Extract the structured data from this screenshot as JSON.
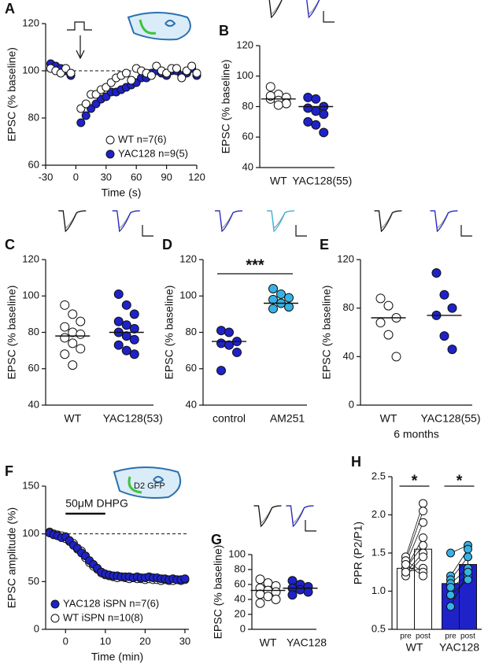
{
  "chart_data": [
    {
      "panel": "A",
      "type": "scatter",
      "ylabel": "EPSC (% baseline)",
      "xlabel": "Time (s)",
      "xlim": [
        -30,
        120
      ],
      "xticks": [
        -30,
        0,
        30,
        60,
        90,
        120
      ],
      "ylim": [
        60,
        120
      ],
      "yticks": [
        60,
        80,
        100,
        120
      ],
      "ref_line": 100,
      "legend": "lower right",
      "x": [
        -25,
        -20,
        -15,
        -10,
        -5,
        5,
        10,
        15,
        20,
        25,
        30,
        35,
        40,
        45,
        50,
        55,
        60,
        65,
        70,
        75,
        80,
        85,
        90,
        95,
        100,
        105,
        110,
        115,
        120
      ],
      "series": [
        {
          "name": "WT n=7(6)",
          "color": "#ffffff",
          "values": [
            101,
            100,
            99,
            101,
            99,
            84,
            86,
            90,
            90,
            92,
            93,
            95,
            97,
            98,
            99,
            96,
            101,
            100,
            99,
            98,
            102,
            100,
            99,
            101,
            101,
            97,
            100,
            102,
            99
          ]
        },
        {
          "name": "YAC128 n=9(5)",
          "color": "#1f22c9",
          "values": [
            103,
            102,
            101,
            100,
            98,
            78,
            81,
            84,
            86,
            88,
            89,
            91,
            91,
            92,
            93,
            94,
            95,
            97,
            97,
            99,
            100,
            99,
            98,
            100,
            100,
            98,
            99,
            101,
            98
          ]
        }
      ]
    },
    {
      "panel": "B",
      "type": "strip",
      "ylabel": "EPSC (% baseline)",
      "categories": [
        "WT",
        "YAC128(55)"
      ],
      "ylim": [
        40,
        120
      ],
      "yticks": [
        40,
        60,
        80,
        100,
        120
      ],
      "series": [
        {
          "color": "#ffffff",
          "values": [
            93,
            88,
            86,
            85,
            84,
            82,
            87,
            81
          ],
          "mean": 85
        },
        {
          "color": "#1f22c9",
          "values": [
            86,
            85,
            80,
            79,
            77,
            75,
            70,
            68,
            63
          ],
          "mean": 80
        }
      ]
    },
    {
      "panel": "C",
      "type": "strip",
      "ylabel": "EPSC (% baseline)",
      "categories": [
        "WT",
        "YAC128(53)"
      ],
      "ylim": [
        40,
        120
      ],
      "yticks": [
        40,
        60,
        80,
        100,
        120
      ],
      "series": [
        {
          "color": "#ffffff",
          "values": [
            95,
            90,
            86,
            83,
            80,
            79,
            77,
            74,
            71,
            68,
            62
          ],
          "mean": 78
        },
        {
          "color": "#1f22c9",
          "values": [
            101,
            95,
            90,
            86,
            84,
            82,
            80,
            78,
            76,
            73,
            70,
            68
          ],
          "mean": 80
        }
      ]
    },
    {
      "panel": "D",
      "type": "strip",
      "ylabel": "EPSC (% baseline)",
      "categories": [
        "control",
        "AM251"
      ],
      "ylim": [
        40,
        120
      ],
      "yticks": [
        40,
        60,
        80,
        100,
        120
      ],
      "significance": "***",
      "series": [
        {
          "color": "#1f22c9",
          "values": [
            81,
            80,
            75,
            74,
            73,
            69,
            59
          ],
          "mean": 75
        },
        {
          "color": "#36b3e6",
          "values": [
            104,
            101,
            99,
            98,
            96,
            94,
            93
          ],
          "mean": 96
        }
      ]
    },
    {
      "panel": "E",
      "type": "strip",
      "ylabel": "EPSC (% baseline)",
      "categories": [
        "WT",
        "YAC128(55)"
      ],
      "xlabel": "6 months",
      "ylim": [
        0,
        120
      ],
      "yticks": [
        0,
        40,
        80,
        120
      ],
      "series": [
        {
          "color": "#ffffff",
          "values": [
            88,
            82,
            72,
            68,
            58,
            40
          ],
          "mean": 72
        },
        {
          "color": "#1f22c9",
          "values": [
            109,
            91,
            80,
            74,
            57,
            46
          ],
          "mean": 74
        }
      ]
    },
    {
      "panel": "F",
      "type": "scatter",
      "ylabel": "EPSC amplitude (%)",
      "xlabel": "Time (min)",
      "xlim": [
        -5,
        31
      ],
      "xticks": [
        0,
        10,
        20,
        30
      ],
      "ylim": [
        0,
        150
      ],
      "yticks": [
        0,
        50,
        100,
        150
      ],
      "ref_line": 100,
      "legend": "lower left",
      "annotation": "50μM DHPG",
      "annotation_span": [
        0,
        10
      ],
      "inset_label": "D2 GFP",
      "x": [
        -4,
        -3,
        -2,
        -1,
        0,
        1,
        2,
        3,
        4,
        5,
        6,
        7,
        8,
        9,
        10,
        11,
        12,
        13,
        14,
        15,
        16,
        17,
        18,
        19,
        20,
        21,
        22,
        23,
        24,
        25,
        26,
        27,
        28,
        29,
        30
      ],
      "series": [
        {
          "name": "YAC128 iSPN n=7(6)",
          "color": "#1f22c9",
          "values": [
            101,
            99,
            98,
            96,
            97,
            93,
            88,
            85,
            80,
            77,
            72,
            68,
            64,
            60,
            58,
            57,
            56,
            56,
            55,
            55,
            55,
            54,
            55,
            54,
            54,
            55,
            54,
            54,
            53,
            53,
            52,
            53,
            52,
            52,
            53
          ]
        },
        {
          "name": "WT iSPN n=10(8)",
          "color": "#ffffff",
          "values": [
            102,
            100,
            99,
            98,
            95,
            92,
            90,
            84,
            82,
            75,
            70,
            66,
            63,
            59,
            57,
            56,
            55,
            54,
            55,
            54,
            53,
            54,
            53,
            53,
            52,
            53,
            52,
            52,
            51,
            52,
            51,
            51,
            52,
            51,
            52
          ]
        }
      ]
    },
    {
      "panel": "G",
      "type": "strip",
      "ylabel": "EPSC (% baseline)",
      "categories": [
        "WT",
        "YAC128"
      ],
      "ylim": [
        0,
        100
      ],
      "yticks": [
        0,
        20,
        40,
        60,
        80,
        100
      ],
      "series": [
        {
          "color": "#ffffff",
          "values": [
            67,
            62,
            58,
            55,
            52,
            50,
            47,
            44,
            40,
            35
          ],
          "mean": 52
        },
        {
          "color": "#1f22c9",
          "values": [
            65,
            60,
            57,
            55,
            53,
            50,
            46
          ],
          "mean": 55
        }
      ]
    },
    {
      "panel": "H",
      "type": "bar",
      "ylabel": "PPR (P2/P1)",
      "conditions": [
        "pre",
        "post"
      ],
      "significance": "*",
      "ylim": [
        0.5,
        2.5
      ],
      "yticks": [
        {
          "value": 0.5,
          "label": "0.5"
        },
        {
          "value": 1,
          "label": "1.0"
        },
        {
          "value": 1.5,
          "label": "1.5"
        },
        {
          "value": 2,
          "label": "2.0"
        },
        {
          "value": 2.5,
          "label": "2.5"
        }
      ],
      "series": [
        {
          "name": "WT",
          "color": "#ffffff",
          "point_color": "#ffffff",
          "values": [
            1.3,
            1.55
          ],
          "errors": [
            0.05,
            0.08
          ],
          "points": [
            [
              1.45,
              1.4,
              1.35,
              1.3,
              1.3,
              1.25,
              1.2,
              1.25,
              1.4,
              1.35
            ],
            [
              2.15,
              2.05,
              1.9,
              1.7,
              1.6,
              1.5,
              1.45,
              1.3,
              1.25,
              1.2
            ]
          ]
        },
        {
          "name": "YAC128",
          "color": "#1f22c9",
          "point_color": "#36b3e6",
          "values": [
            1.1,
            1.35
          ],
          "errors": [
            0.07,
            0.08
          ],
          "points": [
            [
              1.5,
              1.2,
              1.15,
              1.1,
              1.05,
              0.95,
              0.8
            ],
            [
              1.6,
              1.55,
              1.45,
              1.3,
              1.2,
              1.15,
              1.25
            ]
          ]
        }
      ]
    }
  ]
}
